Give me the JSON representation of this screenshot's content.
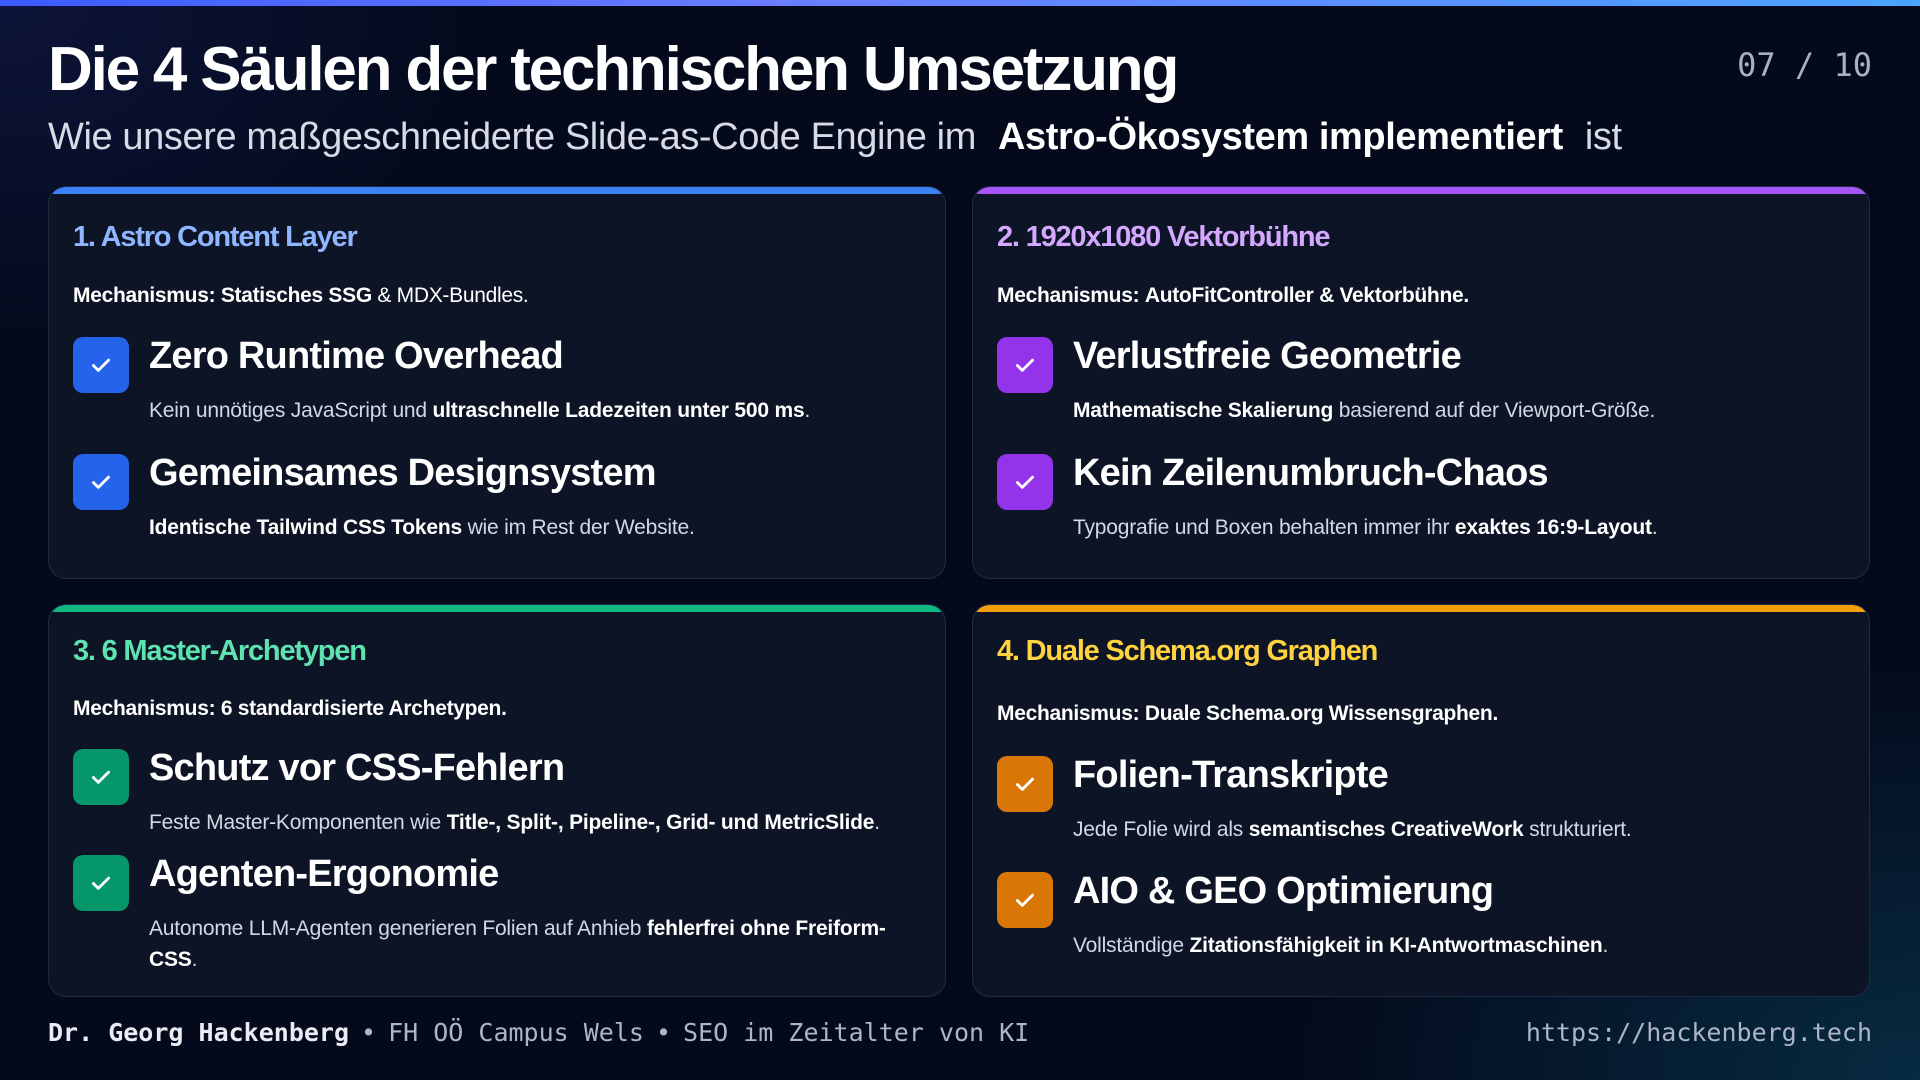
{
  "header": {
    "title": "Die 4 Säulen der technischen Umsetzung",
    "page_number": "07 / 10",
    "subtitle_before": "Wie unsere maßgeschneiderte Slide-as-Code Engine im",
    "subtitle_highlight": "Astro-Ökosystem implementiert",
    "subtitle_after": "ist"
  },
  "colors": {
    "blue": "#3b82f6",
    "purple": "#a855f7",
    "green": "#10b981",
    "orange": "#f59e0b"
  },
  "cards": [
    {
      "title": "1. Astro Content Layer",
      "mechanism_label": "Mechanismus:",
      "mechanism_bold": "Statisches SSG",
      "mechanism_rest": "& MDX-Bundles.",
      "items": [
        {
          "icon": "check-icon",
          "title": "Zero Runtime Overhead",
          "desc_pre": "Kein unnötiges JavaScript und",
          "desc_bold": "ultraschnelle Ladezeiten unter 500 ms",
          "desc_post": "."
        },
        {
          "icon": "check-icon",
          "title": "Gemeinsames Designsystem",
          "desc_pre": "",
          "desc_bold": "Identische Tailwind CSS Tokens",
          "desc_post": "wie im Rest der Website."
        }
      ]
    },
    {
      "title": "2. 1920x1080 Vektorbühne",
      "mechanism_label": "Mechanismus:",
      "mechanism_bold": "AutoFitController & Vektorbühne.",
      "mechanism_rest": "",
      "items": [
        {
          "icon": "check-icon",
          "title": "Verlustfreie Geometrie",
          "desc_pre": "",
          "desc_bold": "Mathematische Skalierung",
          "desc_post": "basierend auf der Viewport-Größe."
        },
        {
          "icon": "check-icon",
          "title": "Kein Zeilenumbruch-Chaos",
          "desc_pre": "Typografie und Boxen behalten immer ihr",
          "desc_bold": "exaktes 16:9-Layout",
          "desc_post": "."
        }
      ]
    },
    {
      "title": "3. 6 Master-Archetypen",
      "mechanism_label": "Mechanismus:",
      "mechanism_bold": "6 standardisierte Archetypen.",
      "mechanism_rest": "",
      "items": [
        {
          "icon": "check-icon",
          "title": "Schutz vor CSS-Fehlern",
          "desc_pre": "Feste Master-Komponenten wie",
          "desc_bold": "Title-, Split-, Pipeline-, Grid- und MetricSlide",
          "desc_post": "."
        },
        {
          "icon": "check-icon",
          "title": "Agenten-Ergonomie",
          "desc_pre": "Autonome LLM-Agenten generieren Folien auf Anhieb",
          "desc_bold": "fehlerfrei ohne Freiform-CSS",
          "desc_post": "."
        }
      ]
    },
    {
      "title": "4. Duale Schema.org Graphen",
      "mechanism_label": "Mechanismus:",
      "mechanism_bold": "Duale Schema.org Wissensgraphen.",
      "mechanism_rest": "",
      "items": [
        {
          "icon": "check-icon",
          "title": "Folien-Transkripte",
          "desc_pre": "Jede Folie wird als",
          "desc_bold": "semantisches CreativeWork",
          "desc_post": "strukturiert."
        },
        {
          "icon": "check-icon",
          "title": "AIO & GEO Optimierung",
          "desc_pre": "Vollständige",
          "desc_bold": "Zitationsfähigkeit in KI-Antwortmaschinen",
          "desc_post": "."
        }
      ]
    }
  ],
  "footer": {
    "author": "Dr. Georg Hackenberg",
    "separator": "•",
    "institution": "FH OÖ Campus Wels",
    "course": "SEO im Zeitalter von KI",
    "url": "https://hackenberg.tech"
  }
}
